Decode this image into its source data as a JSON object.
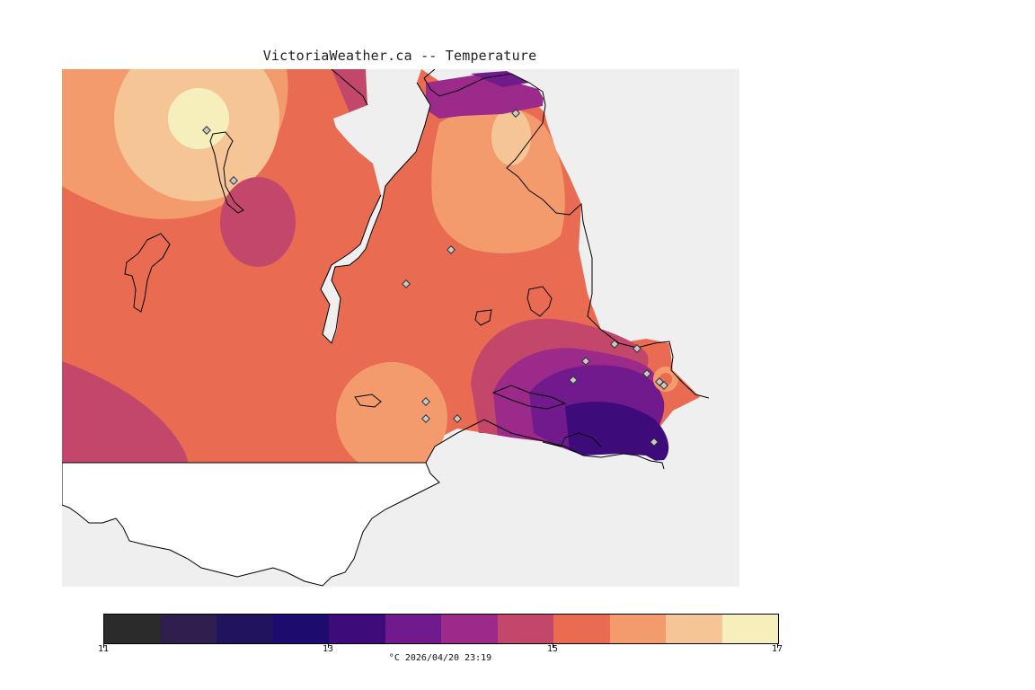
{
  "title": "VictoriaWeather.ca -- Temperature",
  "legend": {
    "min": 11,
    "max": 17,
    "labels": [
      {
        "value": 11,
        "text": "11"
      },
      {
        "value": 13,
        "text": "13"
      },
      {
        "value": 15,
        "text": "15"
      },
      {
        "value": 17,
        "text": "17"
      }
    ],
    "colors": [
      "#2b2b2b",
      "#2e1f4e",
      "#21135e",
      "#1d0b6e",
      "#3e0b7a",
      "#711a8e",
      "#9b2a8a",
      "#c3476b",
      "#e86b52",
      "#f39b6d",
      "#f5c596",
      "#f6efbc"
    ],
    "caption": "°C  2026/04/20 23:19"
  },
  "colors": {
    "outside": "#efefef",
    "land_blank": "#ffffff",
    "coast": "#000000",
    "station": "#c9c9c9"
  }
}
